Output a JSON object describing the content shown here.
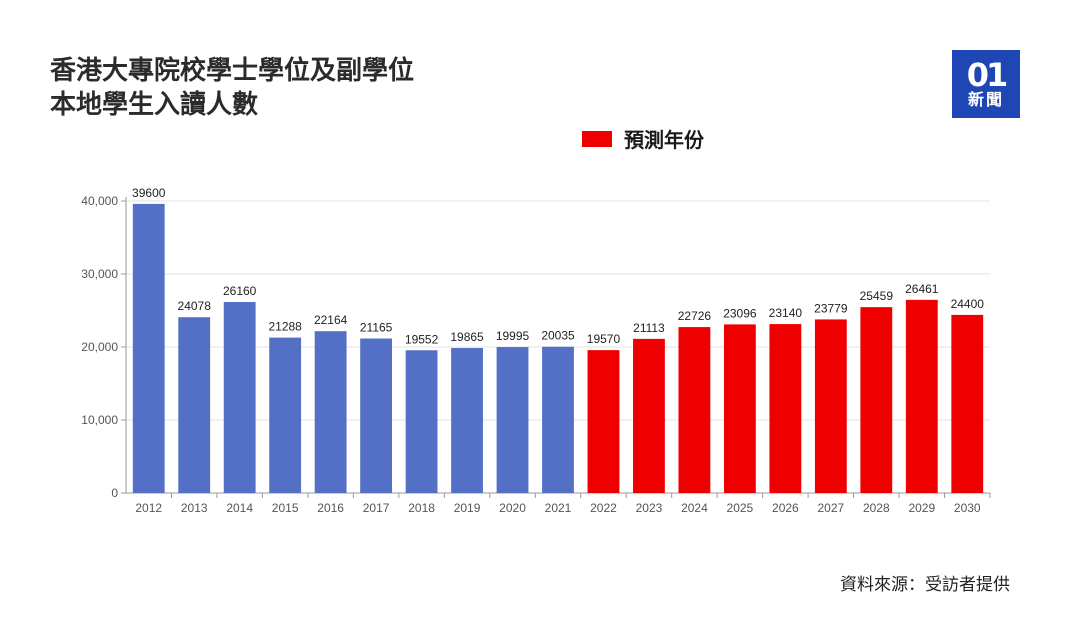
{
  "title_lines": [
    "香港大專院校學士學位及副學位",
    "本地學生入讀人數"
  ],
  "logo": {
    "mark": "01",
    "sub": "新聞"
  },
  "legend": {
    "label": "預測年份",
    "color": "#ee0000"
  },
  "source": "資料來源：受訪者提供",
  "chart_data": {
    "type": "bar",
    "title": "香港大專院校學士學位及副學位本地學生入讀人數",
    "categories": [
      "2012",
      "2013",
      "2014",
      "2015",
      "2016",
      "2017",
      "2018",
      "2019",
      "2020",
      "2021",
      "2022",
      "2023",
      "2024",
      "2025",
      "2026",
      "2027",
      "2028",
      "2029",
      "2030"
    ],
    "values": [
      39600,
      24078,
      26160,
      21288,
      22164,
      21165,
      19552,
      19865,
      19995,
      20035,
      19570,
      21113,
      22726,
      23096,
      23140,
      23779,
      25459,
      26461,
      24400
    ],
    "forecast_from": "2022",
    "colors": {
      "actual": "#5470c6",
      "forecast": "#ee0000"
    },
    "ylim": [
      0,
      40000
    ],
    "yticks": [
      0,
      10000,
      20000,
      30000,
      40000
    ],
    "ytick_labels": [
      "0",
      "10,000",
      "20,000",
      "30,000",
      "40,000"
    ],
    "grid": true,
    "legend_position": "top-center"
  }
}
